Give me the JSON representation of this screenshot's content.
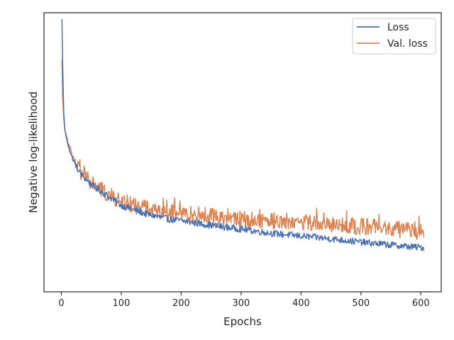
{
  "chart_data": {
    "type": "line",
    "title": "",
    "xlabel": "Epochs",
    "ylabel": "Negative log-likelihood",
    "xlim": [
      -29,
      634
    ],
    "xticks": [
      0,
      100,
      200,
      300,
      400,
      500,
      600
    ],
    "ylim": [
      0.0,
      1.0
    ],
    "y_tick_labels_shown": false,
    "grid": false,
    "legend": {
      "placement": "top-right"
    },
    "series": [
      {
        "name": "Loss",
        "color": "#4c72b0",
        "x": [
          1,
          2,
          4,
          6,
          8,
          10,
          15,
          20,
          25,
          30,
          40,
          50,
          60,
          70,
          80,
          90,
          100,
          120,
          140,
          160,
          180,
          200,
          230,
          260,
          300,
          350,
          400,
          450,
          500,
          550,
          575,
          605
        ],
        "y": [
          0.977,
          0.83,
          0.64,
          0.58,
          0.555,
          0.535,
          0.5,
          0.47,
          0.45,
          0.43,
          0.405,
          0.385,
          0.37,
          0.355,
          0.34,
          0.325,
          0.31,
          0.295,
          0.28,
          0.27,
          0.26,
          0.255,
          0.245,
          0.235,
          0.225,
          0.21,
          0.2,
          0.19,
          0.178,
          0.168,
          0.163,
          0.158
        ],
        "noise": 0.012
      },
      {
        "name": "Val. loss",
        "color": "#dd8452",
        "x": [
          1,
          2,
          4,
          6,
          8,
          10,
          15,
          20,
          25,
          30,
          40,
          50,
          60,
          70,
          80,
          90,
          100,
          120,
          140,
          160,
          180,
          200,
          230,
          260,
          300,
          350,
          400,
          450,
          500,
          550,
          575,
          605
        ],
        "y": [
          0.83,
          0.7,
          0.62,
          0.575,
          0.555,
          0.535,
          0.505,
          0.475,
          0.455,
          0.435,
          0.41,
          0.39,
          0.375,
          0.36,
          0.345,
          0.335,
          0.32,
          0.31,
          0.3,
          0.29,
          0.285,
          0.28,
          0.275,
          0.27,
          0.26,
          0.255,
          0.25,
          0.24,
          0.235,
          0.225,
          0.22,
          0.215
        ],
        "noise": 0.03
      }
    ]
  }
}
